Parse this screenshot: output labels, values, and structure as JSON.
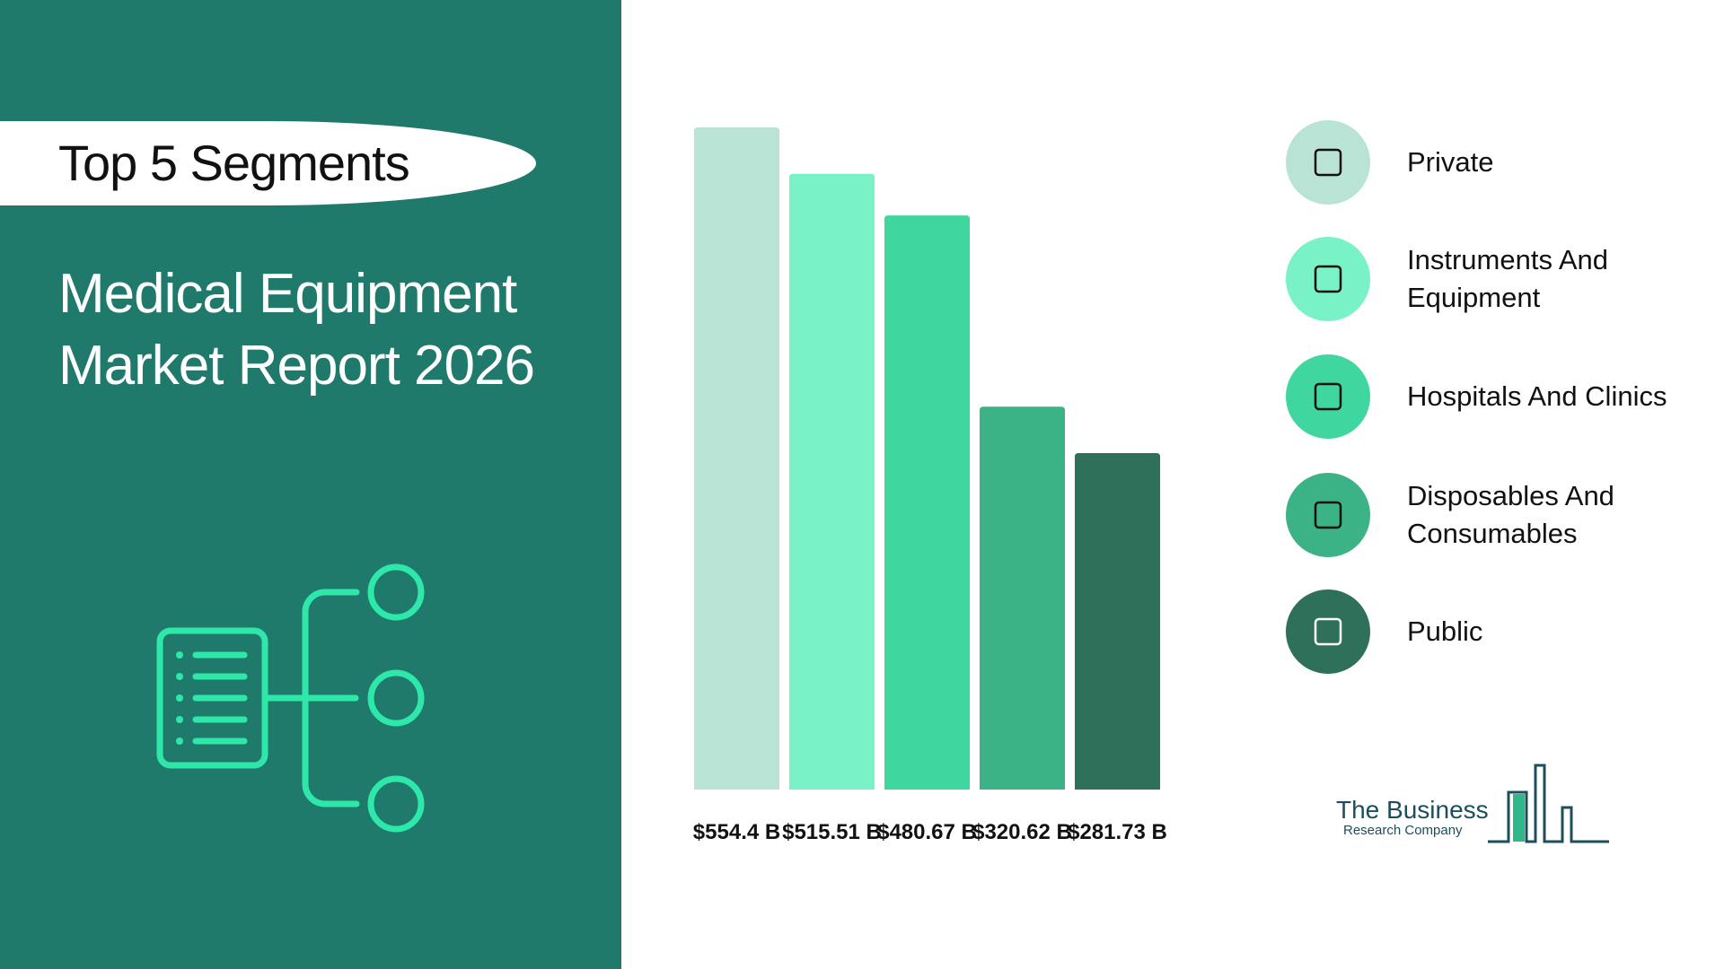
{
  "header": {
    "pill": "Top 5 Segments",
    "title": "Medical Equipment Market Report 2026"
  },
  "chart_data": {
    "type": "bar",
    "categories": [
      "Private",
      "Instruments And Equipment",
      "Hospitals And Clinics",
      "Disposables And Consumables",
      "Public"
    ],
    "values": [
      554.4,
      515.51,
      480.67,
      320.62,
      281.73
    ],
    "value_labels": [
      "$554.4 B",
      "$515.51 B",
      "$480.67 B",
      "$320.62 B",
      "$281.73 B"
    ],
    "colors": [
      "#b9e4d5",
      "#78f2c6",
      "#3fd6a0",
      "#3cb386",
      "#2f705a"
    ]
  },
  "logo": {
    "line1": "The Business",
    "line2": "Research Company"
  }
}
